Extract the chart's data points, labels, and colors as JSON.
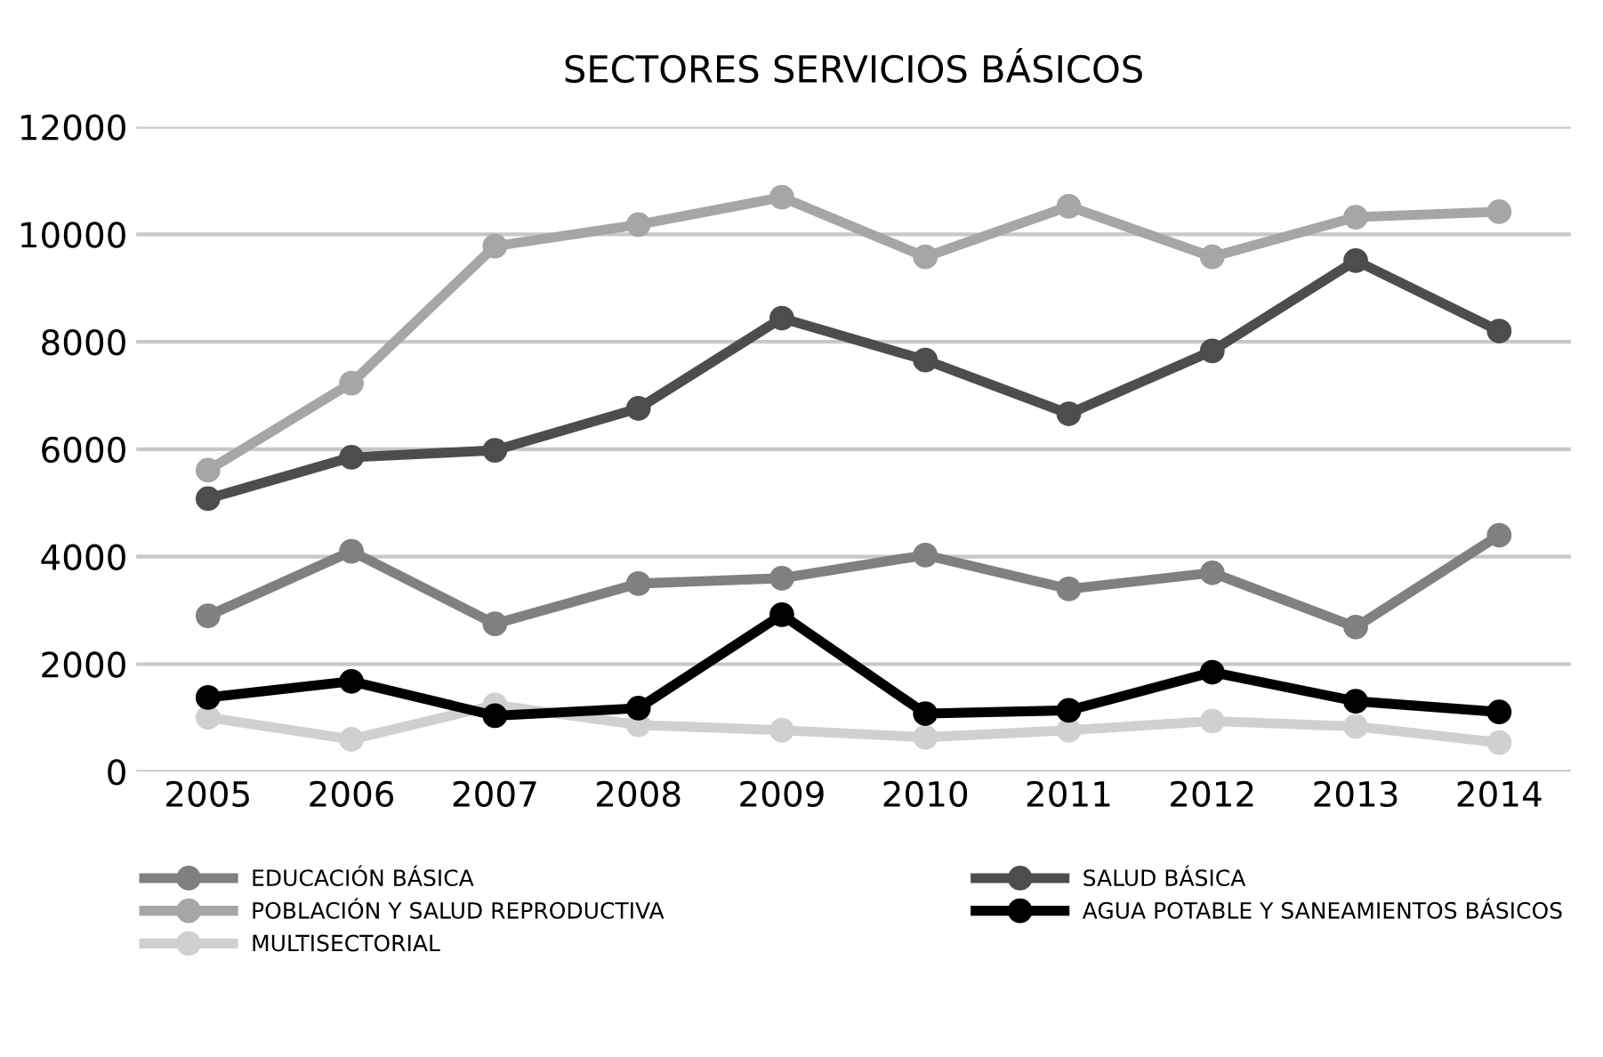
{
  "chart_data": {
    "type": "line",
    "title": "SECTORES SERVICIOS BÁSICOS",
    "categories": [
      "2005",
      "2006",
      "2007",
      "2008",
      "2009",
      "2010",
      "2011",
      "2012",
      "2013",
      "2014"
    ],
    "series": [
      {
        "name": "EDUCACIÓN BÁSICA",
        "color": "#808080",
        "values": [
          2900,
          4100,
          2750,
          3500,
          3600,
          4030,
          3400,
          3700,
          2690,
          4400
        ]
      },
      {
        "name": "SALUD BÁSICA",
        "color": "#4d4d4d",
        "values": [
          5080,
          5850,
          5980,
          6760,
          8440,
          7660,
          6660,
          7830,
          9510,
          8200
        ]
      },
      {
        "name": "POBLACIÓN Y SALUD REPRODUCTIVA",
        "color": "#a6a6a6",
        "values": [
          5610,
          7230,
          9780,
          10180,
          10690,
          9580,
          10520,
          9580,
          10320,
          10420
        ]
      },
      {
        "name": "AGUA POTABLE Y SANEAMIENTOS BÁSICOS",
        "color": "#000000",
        "values": [
          1380,
          1680,
          1040,
          1180,
          2920,
          1080,
          1140,
          1850,
          1310,
          1110
        ]
      },
      {
        "name": "MULTISECTORIAL",
        "color": "#d0d0d0",
        "values": [
          1010,
          600,
          1240,
          870,
          770,
          640,
          770,
          940,
          840,
          540
        ]
      }
    ],
    "ylim": [
      0,
      12000
    ],
    "yticks": [
      0,
      2000,
      4000,
      6000,
      8000,
      10000,
      12000
    ],
    "grid": "y",
    "legend": "bottom",
    "marker": "circle",
    "line_style": "solid"
  }
}
